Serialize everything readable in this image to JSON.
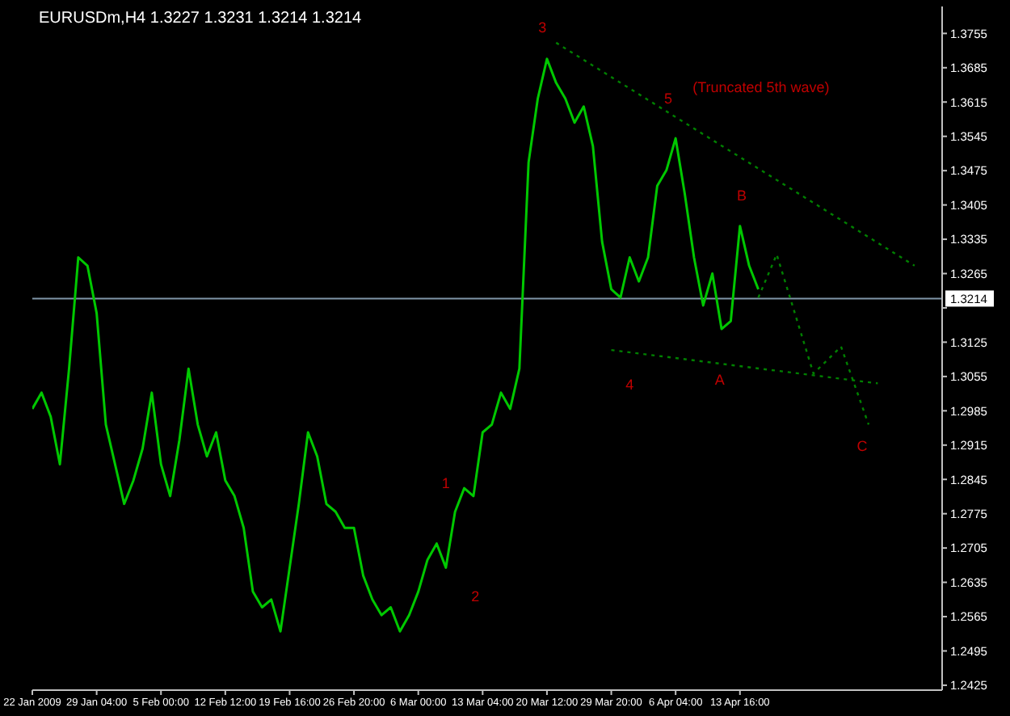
{
  "chart_data": {
    "type": "line",
    "title": "EURUSDm,H4  1.3227 1.3231 1.3214 1.3214",
    "categories": [
      "22 Jan 2009",
      null,
      null,
      null,
      null,
      null,
      null,
      "29 Jan 04:00",
      null,
      null,
      null,
      null,
      null,
      null,
      "5 Feb 00:00",
      null,
      null,
      null,
      null,
      null,
      null,
      "12 Feb 12:00",
      null,
      null,
      null,
      null,
      null,
      null,
      "19 Feb 16:00",
      null,
      null,
      null,
      null,
      null,
      null,
      "26 Feb 20:00",
      null,
      null,
      null,
      null,
      null,
      null,
      "6 Mar 00:00",
      null,
      null,
      null,
      null,
      null,
      null,
      "13 Mar 04:00",
      null,
      null,
      null,
      null,
      null,
      null,
      "20 Mar 12:00",
      null,
      null,
      null,
      null,
      null,
      null,
      "29 Mar 20:00",
      null,
      null,
      null,
      null,
      null,
      null,
      "6 Apr 04:00",
      null,
      null,
      null,
      null,
      null,
      null,
      "13 Apr 16:00",
      null,
      null,
      null,
      null,
      null,
      null,
      null,
      null,
      null,
      null,
      null,
      null,
      null,
      null,
      null,
      null,
      null,
      null,
      null,
      null,
      null,
      null
    ],
    "series": [
      {
        "color": "#00c800",
        "line_style": "solid",
        "values": [
          1.2989,
          1.3022,
          1.2973,
          1.2876,
          1.3071,
          1.3298,
          1.3281,
          1.3184,
          1.2957,
          1.2876,
          1.2795,
          1.2843,
          1.2908,
          1.3022,
          1.2876,
          1.2811,
          1.2925,
          1.3071,
          1.2957,
          1.2892,
          1.2941,
          1.2843,
          1.2811,
          1.2746,
          1.2616,
          1.2584,
          1.26,
          1.2535,
          1.2665,
          1.2795,
          1.2941,
          1.2892,
          1.2795,
          1.2779,
          1.2746,
          1.2746,
          1.2649,
          1.26,
          1.2568,
          1.2584,
          1.2535,
          1.2568,
          1.2616,
          1.2681,
          1.2714,
          1.2665,
          1.2779,
          1.2827,
          1.2811,
          1.2941,
          1.2957,
          1.3022,
          1.2989,
          1.3071,
          1.3492,
          1.3622,
          1.3703,
          1.3654,
          1.3622,
          1.3573,
          1.3606,
          1.3525,
          1.333,
          1.3233,
          1.3216,
          1.3298,
          1.3249,
          1.3298,
          1.3444,
          1.3476,
          1.3541,
          1.3427,
          1.3298,
          1.32,
          1.3265,
          1.3152,
          1.3168,
          1.3362,
          1.3281,
          1.3233,
          null,
          null,
          null,
          null,
          null,
          null,
          null,
          null,
          null,
          null,
          null,
          null,
          null,
          null,
          null,
          null,
          null,
          null,
          null,
          null
        ]
      },
      {
        "type": "line",
        "color": "#008000",
        "line_style": "dotted",
        "values": [
          null,
          null,
          null,
          null,
          null,
          null,
          null,
          null,
          null,
          null,
          null,
          null,
          null,
          null,
          null,
          null,
          null,
          null,
          null,
          null,
          null,
          null,
          null,
          null,
          null,
          null,
          null,
          null,
          null,
          null,
          null,
          null,
          null,
          null,
          null,
          null,
          null,
          null,
          null,
          null,
          null,
          null,
          null,
          null,
          null,
          null,
          null,
          null,
          null,
          null,
          null,
          null,
          null,
          null,
          null,
          null,
          null,
          1.3736,
          null,
          null,
          null,
          null,
          null,
          null,
          null,
          null,
          null,
          null,
          null,
          null,
          null,
          null,
          null,
          null,
          null,
          null,
          null,
          null,
          null,
          null,
          null,
          null,
          null,
          null,
          null,
          null,
          null,
          null,
          null,
          null,
          null,
          null,
          null,
          null,
          null,
          null,
          1.3281,
          null,
          null,
          null
        ]
      },
      {
        "type": "line",
        "color": "#008000",
        "line_style": "dotted",
        "values": [
          null,
          null,
          null,
          null,
          null,
          null,
          null,
          null,
          null,
          null,
          null,
          null,
          null,
          null,
          null,
          null,
          null,
          null,
          null,
          null,
          null,
          null,
          null,
          null,
          null,
          null,
          null,
          null,
          null,
          null,
          null,
          null,
          null,
          null,
          null,
          null,
          null,
          null,
          null,
          null,
          null,
          null,
          null,
          null,
          null,
          null,
          null,
          null,
          null,
          null,
          null,
          null,
          null,
          null,
          null,
          null,
          null,
          null,
          null,
          null,
          null,
          null,
          null,
          1.3109,
          null,
          null,
          null,
          null,
          null,
          null,
          null,
          null,
          null,
          null,
          null,
          null,
          null,
          null,
          null,
          null,
          null,
          null,
          null,
          null,
          null,
          null,
          null,
          null,
          null,
          null,
          null,
          null,
          1.3041,
          null,
          null,
          null,
          null,
          null,
          null,
          null
        ]
      },
      {
        "type": "line",
        "color": "#008000",
        "line_style": "dotted",
        "values": [
          null,
          null,
          null,
          null,
          null,
          null,
          null,
          null,
          null,
          null,
          null,
          null,
          null,
          null,
          null,
          null,
          null,
          null,
          null,
          null,
          null,
          null,
          null,
          null,
          null,
          null,
          null,
          null,
          null,
          null,
          null,
          null,
          null,
          null,
          null,
          null,
          null,
          null,
          null,
          null,
          null,
          null,
          null,
          null,
          null,
          null,
          null,
          null,
          null,
          null,
          null,
          null,
          null,
          null,
          null,
          null,
          null,
          null,
          null,
          null,
          null,
          null,
          null,
          null,
          null,
          null,
          null,
          null,
          null,
          null,
          null,
          null,
          null,
          null,
          null,
          null,
          null,
          null,
          null,
          1.3216,
          null,
          1.3304,
          null,
          null,
          null,
          1.3061,
          null,
          null,
          1.3116,
          null,
          null,
          1.2957,
          null,
          null,
          null,
          null,
          null,
          null,
          null,
          null
        ]
      }
    ],
    "ylim": [
      1.2415,
      1.381
    ],
    "yticks": [
      1.2425,
      1.2495,
      1.2565,
      1.2635,
      1.2705,
      1.2775,
      1.2845,
      1.2915,
      1.2985,
      1.3055,
      1.3125,
      {
        "value": 1.3195,
        "label": null
      },
      1.3265,
      1.3335,
      1.3405,
      1.3475,
      1.3545,
      1.3615,
      1.3685,
      1.3755
    ],
    "ref_lines": [
      {
        "axis": "y",
        "value": 1.3214,
        "label": "1.3214",
        "color": "#8096a8"
      }
    ],
    "annotations": [
      "3",
      "5",
      "(Truncated 5th wave)",
      "B",
      "1",
      "2",
      "4",
      "A",
      "C"
    ]
  }
}
